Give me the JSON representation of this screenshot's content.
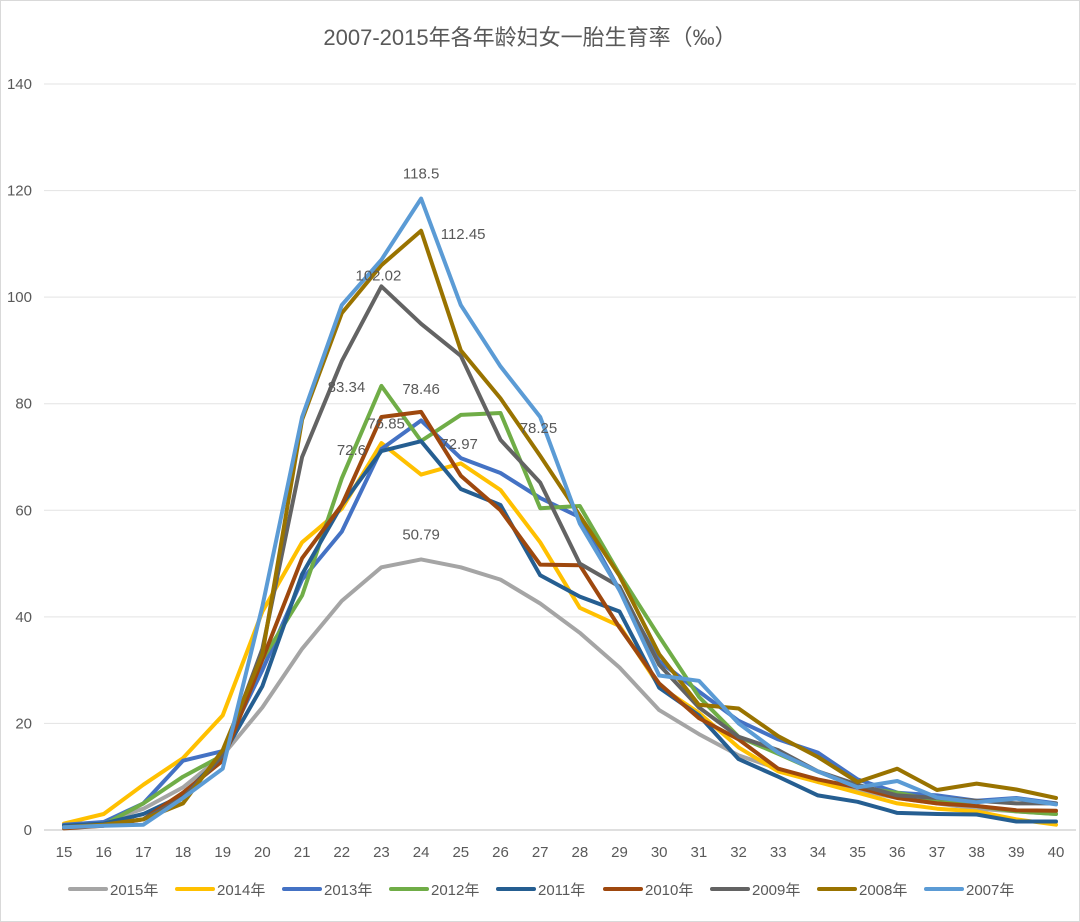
{
  "chart_data": {
    "type": "line",
    "title": "2007-2015年各年龄妇女一胎生育率（‰）",
    "xlabel": "",
    "ylabel": "",
    "ylim": [
      0,
      140
    ],
    "yticks": [
      0,
      20,
      40,
      60,
      80,
      100,
      120,
      140
    ],
    "x": [
      15,
      16,
      17,
      18,
      19,
      20,
      21,
      22,
      23,
      24,
      25,
      26,
      27,
      28,
      29,
      30,
      31,
      32,
      33,
      34,
      35,
      36,
      37,
      38,
      39,
      40
    ],
    "grid": true,
    "legend_position": "bottom",
    "series": [
      {
        "name": "2015年",
        "color": "#A5A5A5",
        "values": [
          0.5,
          1.5,
          4,
          8,
          14,
          23,
          34,
          43,
          49.3,
          50.79,
          49.3,
          47,
          42.5,
          37,
          30.5,
          22.5,
          18,
          14,
          11.5,
          9,
          7.5,
          6,
          5,
          4,
          3.5,
          3
        ]
      },
      {
        "name": "2014年",
        "color": "#FFC000",
        "values": [
          1.2,
          3,
          8.5,
          13.5,
          21.5,
          41,
          54,
          60.3,
          72.6,
          66.7,
          68.8,
          63.8,
          54,
          41.7,
          38.3,
          27,
          22,
          15.5,
          11,
          9,
          7,
          5,
          4,
          3.5,
          2,
          1
        ]
      },
      {
        "name": "2013年",
        "color": "#4472C4",
        "values": [
          1,
          1.5,
          5,
          13,
          14.8,
          30,
          47,
          56,
          71.5,
          76.85,
          69.8,
          67,
          62.3,
          58.7,
          45,
          31.7,
          26,
          20.5,
          17,
          14.5,
          9.5,
          7,
          6.5,
          5.5,
          6,
          5
        ]
      },
      {
        "name": "2012年",
        "color": "#70AD47",
        "values": [
          0.5,
          1,
          5,
          10,
          14,
          32,
          44,
          66,
          83.34,
          73,
          77.9,
          78.25,
          60.4,
          60.8,
          48,
          36.3,
          25,
          17.5,
          14.3,
          11,
          8,
          7,
          5.5,
          4.5,
          3.5,
          3
        ]
      },
      {
        "name": "2011年",
        "color": "#255E91",
        "values": [
          0.8,
          1.2,
          3,
          6.5,
          14,
          27,
          48,
          61,
          71.1,
          72.97,
          64,
          61,
          47.8,
          43.8,
          41,
          26.7,
          21.5,
          13.3,
          10,
          6.5,
          5.3,
          3.2,
          3,
          2.9,
          1.6,
          1.6
        ]
      },
      {
        "name": "2010年",
        "color": "#9E480E",
        "values": [
          0.3,
          0.8,
          2,
          7,
          13,
          32,
          51,
          61,
          77.5,
          78.46,
          66.5,
          60,
          49.8,
          49.7,
          38,
          27.5,
          21,
          17,
          11.5,
          9.5,
          8,
          6,
          5,
          4.5,
          3.7,
          3.6
        ]
      },
      {
        "name": "2009年",
        "color": "#636363",
        "values": [
          0.5,
          1,
          2,
          6,
          14,
          34,
          70,
          88,
          102.02,
          95,
          89,
          73.2,
          65.2,
          50,
          45.7,
          31,
          23,
          17.5,
          15,
          11,
          8.5,
          6.5,
          6,
          5.5,
          5,
          5
        ]
      },
      {
        "name": "2008年",
        "color": "#997300",
        "values": [
          0.5,
          1,
          2,
          5,
          15,
          33,
          77,
          97,
          106,
          112.45,
          90,
          81,
          70.2,
          59,
          47.7,
          33,
          23.5,
          22.8,
          17.6,
          13.7,
          9,
          11.5,
          7.5,
          8.7,
          7.6,
          6
        ]
      },
      {
        "name": "2007年",
        "color": "#5B9BD5",
        "values": [
          0.5,
          0.8,
          1,
          6,
          11.5,
          42,
          77.5,
          98.5,
          107,
          118.5,
          98.5,
          87,
          77.5,
          57.5,
          45,
          29,
          28,
          20,
          14.5,
          11,
          8,
          9.2,
          6.1,
          5.2,
          5.9,
          4.8
        ]
      }
    ],
    "data_labels": [
      {
        "text": "118.5",
        "series": "2007年",
        "x": 24
      },
      {
        "text": "112.45",
        "series": "2008年",
        "x": 24
      },
      {
        "text": "102.02",
        "series": "2009年",
        "x": 23
      },
      {
        "text": "83.34",
        "series": "2012年",
        "x": 23
      },
      {
        "text": "78.46",
        "series": "2010年",
        "x": 24
      },
      {
        "text": "76.85",
        "series": "2013年",
        "x": 24
      },
      {
        "text": "72.6",
        "series": "2014年",
        "x": 23
      },
      {
        "text": "72.97",
        "series": "2011年",
        "x": 24
      },
      {
        "text": "78.25",
        "series": "2012年",
        "x": 26
      },
      {
        "text": "50.79",
        "series": "2015年",
        "x": 24
      }
    ]
  }
}
